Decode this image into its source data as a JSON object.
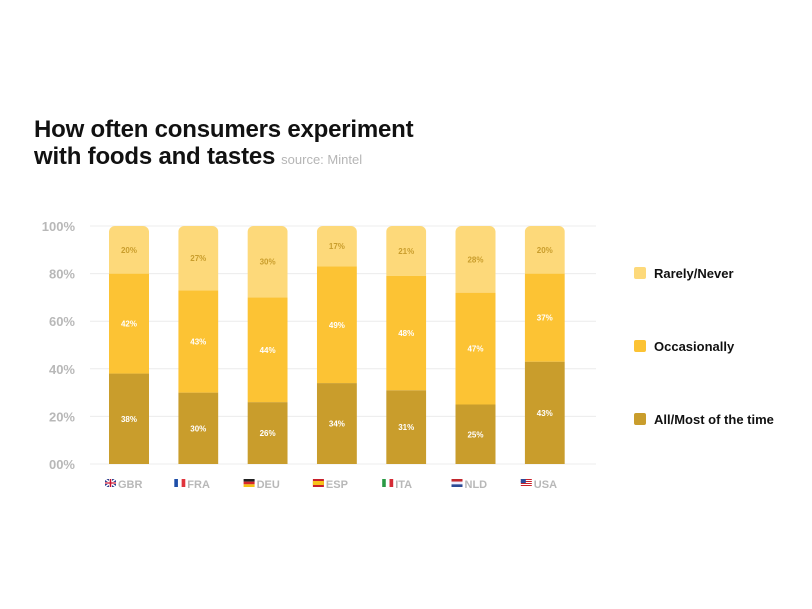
{
  "header": {
    "title_line1": "How often consumers experiment",
    "title_line2": "with foods and tastes",
    "source": "source: Mintel"
  },
  "colors": {
    "rarely": "#fdd97a",
    "occasionally": "#fcc334",
    "all_most": "#c99d2c",
    "grid": "#ececec"
  },
  "chart_data": {
    "type": "bar",
    "stacked": true,
    "title": "How often consumers experiment with foods and tastes",
    "subtitle": "source: Mintel",
    "categories": [
      "GBR",
      "FRA",
      "DEU",
      "ESP",
      "ITA",
      "NLD",
      "USA"
    ],
    "category_icons": [
      "flag-gb-icon",
      "flag-fr-icon",
      "flag-de-icon",
      "flag-es-icon",
      "flag-it-icon",
      "flag-nl-icon",
      "flag-us-icon"
    ],
    "series": [
      {
        "name": "All/Most of the time",
        "values": [
          38,
          30,
          26,
          34,
          31,
          25,
          43
        ]
      },
      {
        "name": "Occasionally",
        "values": [
          42,
          43,
          44,
          49,
          48,
          47,
          37
        ]
      },
      {
        "name": "Rarely/Never",
        "values": [
          20,
          27,
          30,
          17,
          21,
          28,
          20
        ]
      }
    ],
    "ylim": [
      0,
      100
    ],
    "yticks": [
      "00%",
      "20%",
      "40%",
      "60%",
      "80%",
      "100%"
    ],
    "ytick_values": [
      0,
      20,
      40,
      60,
      80,
      100
    ],
    "xlabel": "",
    "ylabel": "",
    "grid": true,
    "legend_position": "right"
  }
}
